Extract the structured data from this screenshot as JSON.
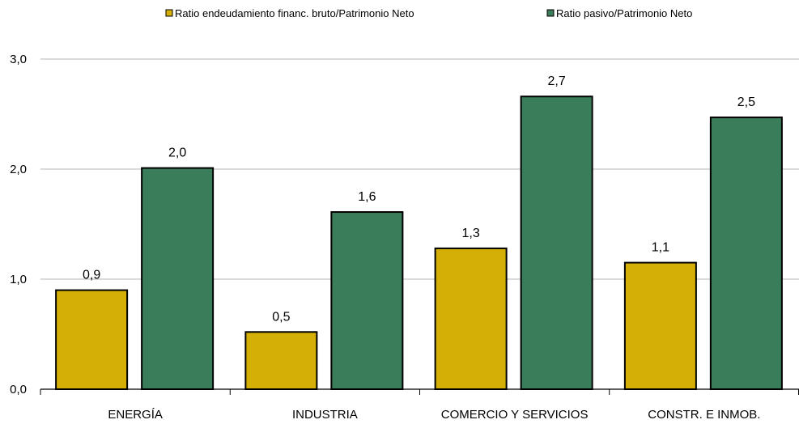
{
  "chart_data": {
    "type": "bar",
    "categories": [
      "ENERGÍA",
      "INDUSTRIA",
      "COMERCIO Y SERVICIOS",
      "CONSTR. E INMOB."
    ],
    "series": [
      {
        "name": "Ratio endeudamiento financ. bruto/Patrimonio Neto",
        "color": "#d4af06",
        "values": [
          0.9,
          0.52,
          1.28,
          1.15
        ],
        "labels": [
          "0,9",
          "0,5",
          "1,3",
          "1,1"
        ]
      },
      {
        "name": "Ratio pasivo/Patrimonio Neto",
        "color": "#3a7d5a",
        "values": [
          2.01,
          1.61,
          2.66,
          2.47
        ],
        "labels": [
          "2,0",
          "1,6",
          "2,7",
          "2,5"
        ]
      }
    ],
    "ylim": [
      0,
      3
    ],
    "yticks": [
      {
        "value": 0,
        "label": "0,0"
      },
      {
        "value": 1,
        "label": "1,0"
      },
      {
        "value": 2,
        "label": "2,0"
      },
      {
        "value": 3,
        "label": "3,0"
      }
    ],
    "grid": true,
    "legend_position": "top",
    "title": "",
    "xlabel": "",
    "ylabel": ""
  }
}
